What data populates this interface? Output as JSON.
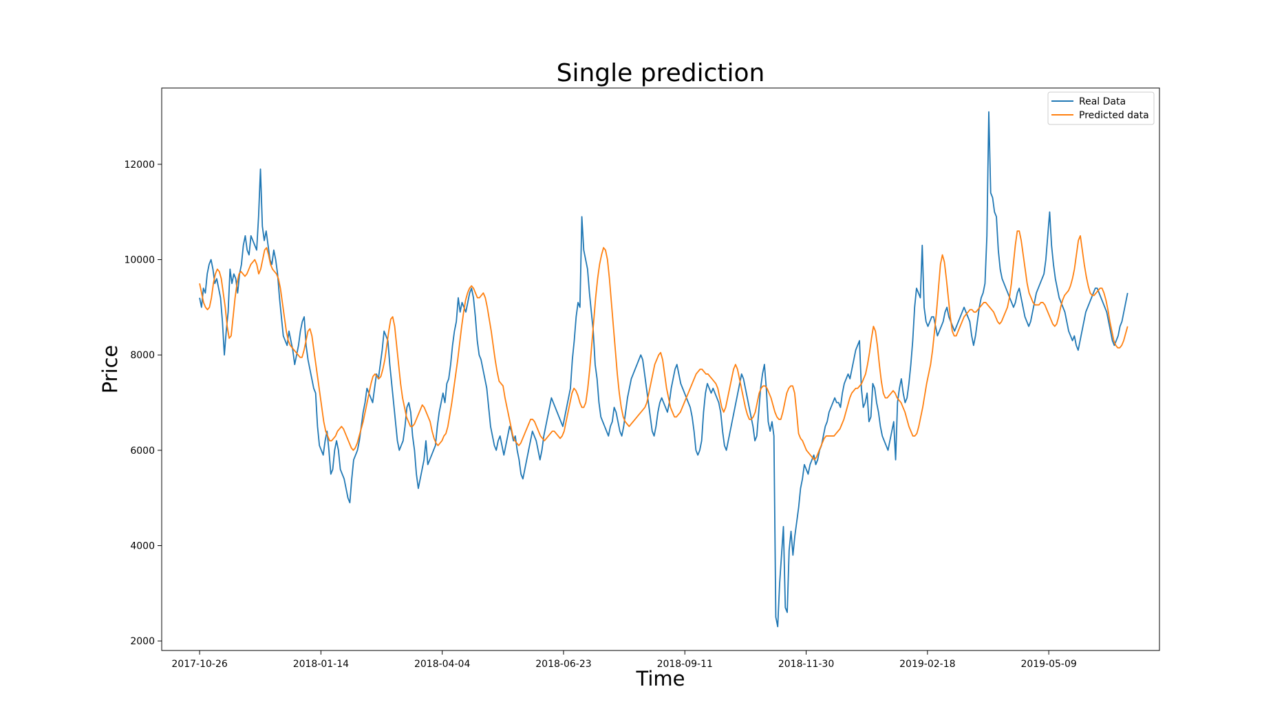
{
  "chart_data": {
    "type": "line",
    "title": "Single prediction",
    "xlabel": "Time",
    "ylabel": "Price",
    "x_start": "2017-10-26",
    "x_end": "2019-06-30",
    "xlim": [
      "2017-10-01",
      "2019-07-21"
    ],
    "ylim": [
      1800,
      13600
    ],
    "grid": false,
    "legend_position": "top-right",
    "x_ticks": [
      "2017-10-26",
      "2018-01-14",
      "2018-04-04",
      "2018-06-23",
      "2018-09-11",
      "2018-11-30",
      "2019-02-18",
      "2019-05-09"
    ],
    "y_ticks": [
      2000,
      4000,
      6000,
      8000,
      10000,
      12000
    ],
    "series": [
      {
        "name": "Real Data",
        "color": "#1f77b4",
        "values": [
          9200,
          9000,
          9400,
          9300,
          9700,
          9900,
          10000,
          9800,
          9500,
          9600,
          9400,
          9200,
          8700,
          8000,
          8500,
          8900,
          9800,
          9500,
          9700,
          9600,
          9300,
          9700,
          9900,
          10300,
          10500,
          10200,
          10100,
          10500,
          10400,
          10300,
          10200,
          10900,
          11900,
          10700,
          10400,
          10600,
          10300,
          10000,
          9900,
          10200,
          10000,
          9700,
          9200,
          8800,
          8400,
          8300,
          8200,
          8500,
          8300,
          8100,
          7800,
          8000,
          8200,
          8500,
          8700,
          8800,
          8200,
          7900,
          7700,
          7500,
          7300,
          7200,
          6500,
          6100,
          6000,
          5900,
          6200,
          6400,
          6000,
          5500,
          5600,
          6000,
          6200,
          6000,
          5600,
          5500,
          5400,
          5200,
          5000,
          4900,
          5400,
          5800,
          5900,
          6000,
          6200,
          6500,
          6800,
          7000,
          7300,
          7200,
          7100,
          7000,
          7300,
          7600,
          7500,
          7800,
          8100,
          8500,
          8400,
          8300,
          7800,
          7400,
          7000,
          6600,
          6200,
          6000,
          6100,
          6200,
          6500,
          6900,
          7000,
          6800,
          6300,
          6000,
          5500,
          5200,
          5400,
          5600,
          5800,
          6200,
          5700,
          5800,
          5900,
          6000,
          6100,
          6500,
          6800,
          7000,
          7200,
          7000,
          7400,
          7500,
          7800,
          8200,
          8500,
          8700,
          9200,
          8900,
          9100,
          9000,
          8900,
          9100,
          9300,
          9400,
          9200,
          8800,
          8300,
          8000,
          7900,
          7700,
          7500,
          7300,
          6900,
          6500,
          6300,
          6100,
          6000,
          6200,
          6300,
          6100,
          5900,
          6100,
          6300,
          6500,
          6400,
          6200,
          6300,
          6000,
          5800,
          5500,
          5400,
          5600,
          5800,
          6000,
          6200,
          6400,
          6300,
          6200,
          6000,
          5800,
          6000,
          6300,
          6500,
          6700,
          6900,
          7100,
          7000,
          6900,
          6800,
          6700,
          6600,
          6500,
          6700,
          6900,
          7100,
          7300,
          7900,
          8300,
          8800,
          9100,
          9000,
          10900,
          10200,
          10000,
          9800,
          9300,
          8900,
          8500,
          7800,
          7500,
          7000,
          6700,
          6600,
          6500,
          6400,
          6300,
          6500,
          6600,
          6900,
          6800,
          6600,
          6400,
          6300,
          6500,
          6800,
          7100,
          7300,
          7500,
          7600,
          7700,
          7800,
          7900,
          8000,
          7900,
          7600,
          7300,
          7000,
          6700,
          6400,
          6300,
          6500,
          6800,
          7000,
          7100,
          7000,
          6900,
          6800,
          7000,
          7300,
          7500,
          7700,
          7800,
          7600,
          7400,
          7300,
          7200,
          7100,
          7000,
          6900,
          6700,
          6400,
          6000,
          5900,
          6000,
          6200,
          6800,
          7200,
          7400,
          7300,
          7200,
          7300,
          7200,
          7100,
          7000,
          6800,
          6400,
          6100,
          6000,
          6200,
          6400,
          6600,
          6800,
          7000,
          7200,
          7400,
          7600,
          7500,
          7300,
          7100,
          6900,
          6700,
          6500,
          6200,
          6300,
          6800,
          7300,
          7600,
          7800,
          7300,
          6600,
          6400,
          6600,
          6300,
          2500,
          2300,
          3200,
          3800,
          4400,
          2700,
          2600,
          3900,
          4300,
          3800,
          4200,
          4500,
          4800,
          5200,
          5400,
          5700,
          5600,
          5500,
          5700,
          5800,
          5900,
          5700,
          5800,
          6000,
          6100,
          6300,
          6500,
          6600,
          6800,
          6900,
          7000,
          7100,
          7000,
          7000,
          6900,
          7200,
          7400,
          7500,
          7600,
          7500,
          7700,
          7900,
          8100,
          8200,
          8300,
          7300,
          6900,
          7000,
          7200,
          6600,
          6700,
          7400,
          7300,
          7000,
          6800,
          6500,
          6300,
          6200,
          6100,
          6000,
          6200,
          6400,
          6600,
          5800,
          7000,
          7300,
          7500,
          7200,
          7000,
          7100,
          7400,
          7800,
          8300,
          9000,
          9400,
          9300,
          9200,
          10300,
          9000,
          8700,
          8600,
          8700,
          8800,
          8800,
          8600,
          8400,
          8500,
          8600,
          8700,
          8900,
          9000,
          8800,
          8700,
          8600,
          8500,
          8600,
          8700,
          8800,
          8900,
          9000,
          8900,
          8800,
          8700,
          8400,
          8200,
          8400,
          8700,
          9000,
          9200,
          9300,
          9500,
          10500,
          13100,
          11400,
          11300,
          11000,
          10900,
          10200,
          9800,
          9600,
          9500,
          9400,
          9300,
          9200,
          9100,
          9000,
          9100,
          9300,
          9400,
          9200,
          9000,
          8800,
          8700,
          8600,
          8700,
          8900,
          9100,
          9300,
          9400,
          9500,
          9600,
          9700,
          10000,
          10500,
          11000,
          10300,
          9900,
          9600,
          9400,
          9200,
          9100,
          9000,
          8900,
          8700,
          8500,
          8400,
          8300,
          8400,
          8200,
          8100,
          8300,
          8500,
          8700,
          8900,
          9000,
          9100,
          9200,
          9300,
          9400,
          9400,
          9300,
          9200,
          9100,
          9000,
          8900,
          8700,
          8500,
          8300,
          8200,
          8300,
          8400,
          8600,
          8700,
          8900,
          9100,
          9300
        ]
      },
      {
        "name": "Predicted data",
        "color": "#ff7f0e",
        "values": [
          9500,
          9300,
          9100,
          9000,
          8950,
          9000,
          9200,
          9500,
          9700,
          9800,
          9750,
          9600,
          9300,
          9000,
          8600,
          8350,
          8400,
          8800,
          9200,
          9500,
          9700,
          9750,
          9700,
          9650,
          9700,
          9800,
          9900,
          9950,
          10000,
          9900,
          9700,
          9800,
          10000,
          10200,
          10250,
          10100,
          9900,
          9800,
          9750,
          9700,
          9600,
          9400,
          9100,
          8800,
          8500,
          8300,
          8200,
          8150,
          8100,
          8050,
          8000,
          7950,
          7950,
          8100,
          8300,
          8500,
          8550,
          8400,
          8100,
          7800,
          7500,
          7200,
          6900,
          6600,
          6400,
          6300,
          6200,
          6200,
          6250,
          6300,
          6400,
          6450,
          6500,
          6450,
          6350,
          6250,
          6150,
          6050,
          6000,
          6050,
          6150,
          6300,
          6450,
          6600,
          6800,
          7000,
          7200,
          7400,
          7550,
          7600,
          7550,
          7500,
          7550,
          7700,
          7900,
          8200,
          8500,
          8750,
          8800,
          8600,
          8200,
          7800,
          7400,
          7100,
          6900,
          6700,
          6600,
          6500,
          6500,
          6550,
          6650,
          6750,
          6850,
          6950,
          6900,
          6800,
          6700,
          6600,
          6400,
          6250,
          6150,
          6100,
          6150,
          6200,
          6300,
          6350,
          6500,
          6750,
          7000,
          7300,
          7600,
          7900,
          8250,
          8600,
          8900,
          9150,
          9300,
          9400,
          9450,
          9400,
          9300,
          9200,
          9200,
          9250,
          9300,
          9200,
          9000,
          8750,
          8500,
          8200,
          7900,
          7650,
          7450,
          7400,
          7350,
          7100,
          6900,
          6700,
          6500,
          6300,
          6200,
          6150,
          6100,
          6150,
          6250,
          6350,
          6450,
          6550,
          6650,
          6650,
          6600,
          6500,
          6400,
          6300,
          6250,
          6200,
          6250,
          6300,
          6350,
          6400,
          6400,
          6350,
          6300,
          6250,
          6300,
          6400,
          6600,
          6800,
          7000,
          7200,
          7300,
          7250,
          7150,
          7000,
          6900,
          6900,
          7000,
          7300,
          7700,
          8200,
          8700,
          9200,
          9600,
          9900,
          10100,
          10250,
          10200,
          10000,
          9600,
          9100,
          8600,
          8100,
          7600,
          7200,
          6900,
          6700,
          6600,
          6550,
          6500,
          6550,
          6600,
          6650,
          6700,
          6750,
          6800,
          6850,
          6900,
          7000,
          7200,
          7400,
          7600,
          7800,
          7900,
          8000,
          8050,
          7900,
          7600,
          7300,
          7100,
          6900,
          6800,
          6700,
          6700,
          6750,
          6800,
          6900,
          7000,
          7100,
          7200,
          7300,
          7400,
          7500,
          7600,
          7650,
          7700,
          7700,
          7650,
          7600,
          7600,
          7550,
          7500,
          7450,
          7400,
          7300,
          7100,
          6900,
          6800,
          6900,
          7100,
          7300,
          7500,
          7700,
          7800,
          7700,
          7500,
          7300,
          7100,
          6900,
          6750,
          6650,
          6650,
          6700,
          6800,
          7000,
          7200,
          7300,
          7350,
          7350,
          7300,
          7200,
          7100,
          6950,
          6800,
          6700,
          6650,
          6650,
          6800,
          7000,
          7200,
          7300,
          7350,
          7350,
          7200,
          6800,
          6350,
          6250,
          6200,
          6100,
          6000,
          5950,
          5900,
          5850,
          5800,
          5850,
          5950,
          6050,
          6150,
          6250,
          6300,
          6300,
          6300,
          6300,
          6300,
          6350,
          6400,
          6450,
          6550,
          6650,
          6800,
          6950,
          7100,
          7200,
          7250,
          7300,
          7300,
          7350,
          7400,
          7500,
          7600,
          7800,
          8050,
          8350,
          8600,
          8500,
          8200,
          7800,
          7450,
          7200,
          7100,
          7100,
          7150,
          7200,
          7250,
          7200,
          7100,
          7050,
          7000,
          6900,
          6800,
          6650,
          6500,
          6400,
          6300,
          6300,
          6350,
          6500,
          6700,
          6900,
          7150,
          7400,
          7600,
          7800,
          8100,
          8500,
          8900,
          9400,
          9900,
          10100,
          9950,
          9600,
          9200,
          8800,
          8500,
          8400,
          8400,
          8500,
          8600,
          8700,
          8800,
          8850,
          8900,
          8950,
          8950,
          8900,
          8900,
          8950,
          9000,
          9050,
          9100,
          9100,
          9050,
          9000,
          8950,
          8900,
          8800,
          8700,
          8650,
          8700,
          8800,
          8900,
          9000,
          9200,
          9500,
          9900,
          10300,
          10600,
          10600,
          10400,
          10100,
          9800,
          9500,
          9300,
          9200,
          9100,
          9050,
          9050,
          9050,
          9100,
          9100,
          9050,
          8950,
          8850,
          8750,
          8650,
          8600,
          8650,
          8800,
          9000,
          9150,
          9250,
          9300,
          9350,
          9450,
          9600,
          9800,
          10100,
          10400,
          10500,
          10200,
          9900,
          9650,
          9450,
          9300,
          9250,
          9250,
          9300,
          9350,
          9400,
          9400,
          9300,
          9150,
          8950,
          8700,
          8500,
          8300,
          8200,
          8150,
          8150,
          8200,
          8300,
          8450,
          8600
        ]
      }
    ]
  }
}
